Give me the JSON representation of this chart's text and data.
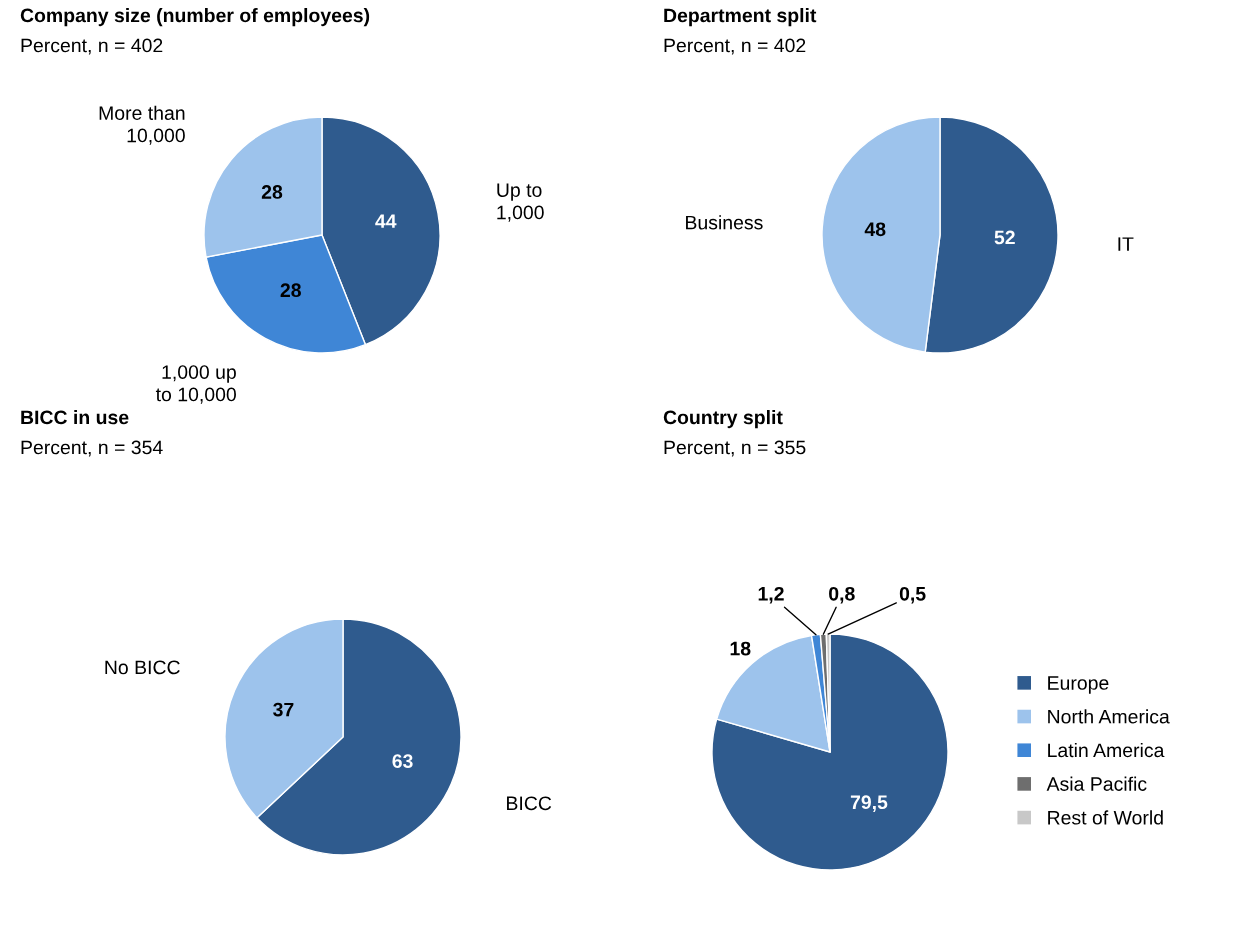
{
  "chart_data": [
    {
      "type": "pie",
      "title": "Company size (number of employees)",
      "subtitle": "Percent, n = 402",
      "categories": [
        "Up to\n1,000",
        "1,000 up\nto 10,000",
        "More than\n10,000"
      ],
      "values": [
        44,
        28,
        28
      ],
      "value_labels": [
        "44",
        "28",
        "28"
      ],
      "colors": [
        "#2f5b8e",
        "#3f86d6",
        "#9dc3ec"
      ],
      "legend": false
    },
    {
      "type": "pie",
      "title": "Department split",
      "subtitle": "Percent, n = 402",
      "categories": [
        "IT",
        "Business"
      ],
      "values": [
        52,
        48
      ],
      "value_labels": [
        "52",
        "48"
      ],
      "colors": [
        "#2f5b8e",
        "#9dc3ec"
      ],
      "legend": false
    },
    {
      "type": "pie",
      "title": "BICC in use",
      "subtitle": "Percent, n = 354",
      "categories": [
        "BICC",
        "No BICC"
      ],
      "values": [
        63,
        37
      ],
      "value_labels": [
        "63",
        "37"
      ],
      "colors": [
        "#2f5b8e",
        "#9dc3ec"
      ],
      "legend": false
    },
    {
      "type": "pie",
      "title": "Country split",
      "subtitle": "Percent, n = 355",
      "categories": [
        "Europe",
        "North America",
        "Latin America",
        "Asia Pacific",
        "Rest of World"
      ],
      "values": [
        79.5,
        18,
        1.2,
        0.8,
        0.5
      ],
      "value_labels": [
        "79,5",
        "18",
        "1,2",
        "0,8",
        "0,5"
      ],
      "colors": [
        "#2f5b8e",
        "#9dc3ec",
        "#3f86d6",
        "#6e6e6e",
        "#c8c8c8"
      ],
      "legend": "right"
    }
  ]
}
